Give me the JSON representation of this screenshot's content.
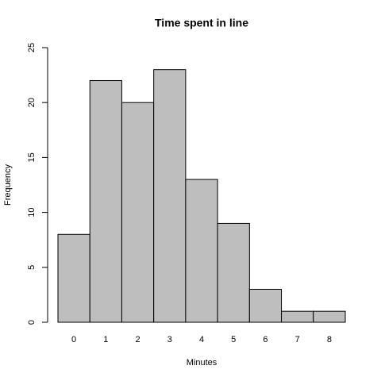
{
  "chart_data": {
    "type": "bar",
    "title": "Time spent in line",
    "x_label": "Minutes",
    "y_label": "Frequency",
    "categories": [
      "0",
      "1",
      "2",
      "3",
      "4",
      "5",
      "6",
      "7",
      "8"
    ],
    "values": [
      8,
      22,
      20,
      23,
      13,
      9,
      3,
      1,
      1
    ],
    "color": "#bebebe",
    "ylim": [
      0,
      25
    ],
    "yticks": [
      0,
      5,
      10,
      15,
      20,
      25
    ],
    "grid": false
  }
}
